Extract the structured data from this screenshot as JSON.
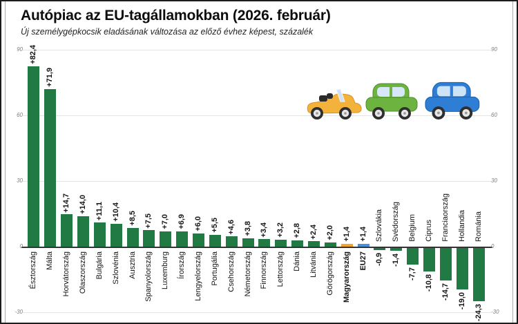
{
  "header": {
    "title": "Autópiac az EU-tagállamokban (2026. február)",
    "subtitle": "Új személygépkocsik eladásának változása az előző évhez képest, százalék"
  },
  "chart_data": {
    "type": "bar",
    "title": "Autópiac az EU-tagállamokban (2026. február)",
    "subtitle": "Új személygépkocsik eladásának változása az előző évhez képest, százalék",
    "xlabel": "",
    "ylabel": "százalék",
    "ylim": [
      -30,
      90
    ],
    "yticks": [
      90,
      60,
      30,
      0,
      -30
    ],
    "grid": true,
    "legend": "none",
    "categories": [
      "Észtország",
      "Málta",
      "Horvátország",
      "Olaszország",
      "Bulgária",
      "Szlovénia",
      "Ausztria",
      "Spanyolország",
      "Luxemburg",
      "Írország",
      "Lengyelország",
      "Portugália",
      "Csehország",
      "Németország",
      "Finnország",
      "Lettország",
      "Dánia",
      "Litvánia",
      "Görögország",
      "Magyarország",
      "EU27",
      "Szlovákia",
      "Svédország",
      "Belgium",
      "Ciprus",
      "Franciaország",
      "Hollandia",
      "Románia"
    ],
    "values": [
      82.4,
      71.9,
      14.7,
      14.0,
      11.1,
      10.4,
      8.5,
      7.5,
      7.0,
      6.9,
      6.0,
      5.5,
      4.6,
      3.8,
      3.4,
      3.2,
      2.8,
      2.4,
      2.0,
      1.4,
      1.4,
      -0.9,
      -1.4,
      -7.7,
      -10.8,
      -14.7,
      -19.0,
      -24.3
    ],
    "value_labels": [
      "+82,4",
      "+71,9",
      "+14,7",
      "+14,0",
      "+11,1",
      "+10,4",
      "+8,5",
      "+7,5",
      "+7,0",
      "+6,9",
      "+6,0",
      "+5,5",
      "+4,6",
      "+3,8",
      "+3,4",
      "+3,2",
      "+2,8",
      "+2,4",
      "+2,0",
      "+1,4",
      "+1,4",
      "-0,9",
      "-1,4",
      "-7,7",
      "-10,8",
      "-14,7",
      "-19,0",
      "-24,3"
    ],
    "bar_color": "#217a44",
    "highlight_colors": {
      "Magyarország": "#f0a62e",
      "EU27": "#4b90d6"
    },
    "bold_categories": [
      "Magyarország",
      "EU27"
    ]
  },
  "decorations": {
    "cars": [
      {
        "name": "convertible-car-icon",
        "color": "#f3b23c"
      },
      {
        "name": "green-car-icon",
        "color": "#6cb33f"
      },
      {
        "name": "blue-car-icon",
        "color": "#2e7ed6"
      }
    ]
  }
}
